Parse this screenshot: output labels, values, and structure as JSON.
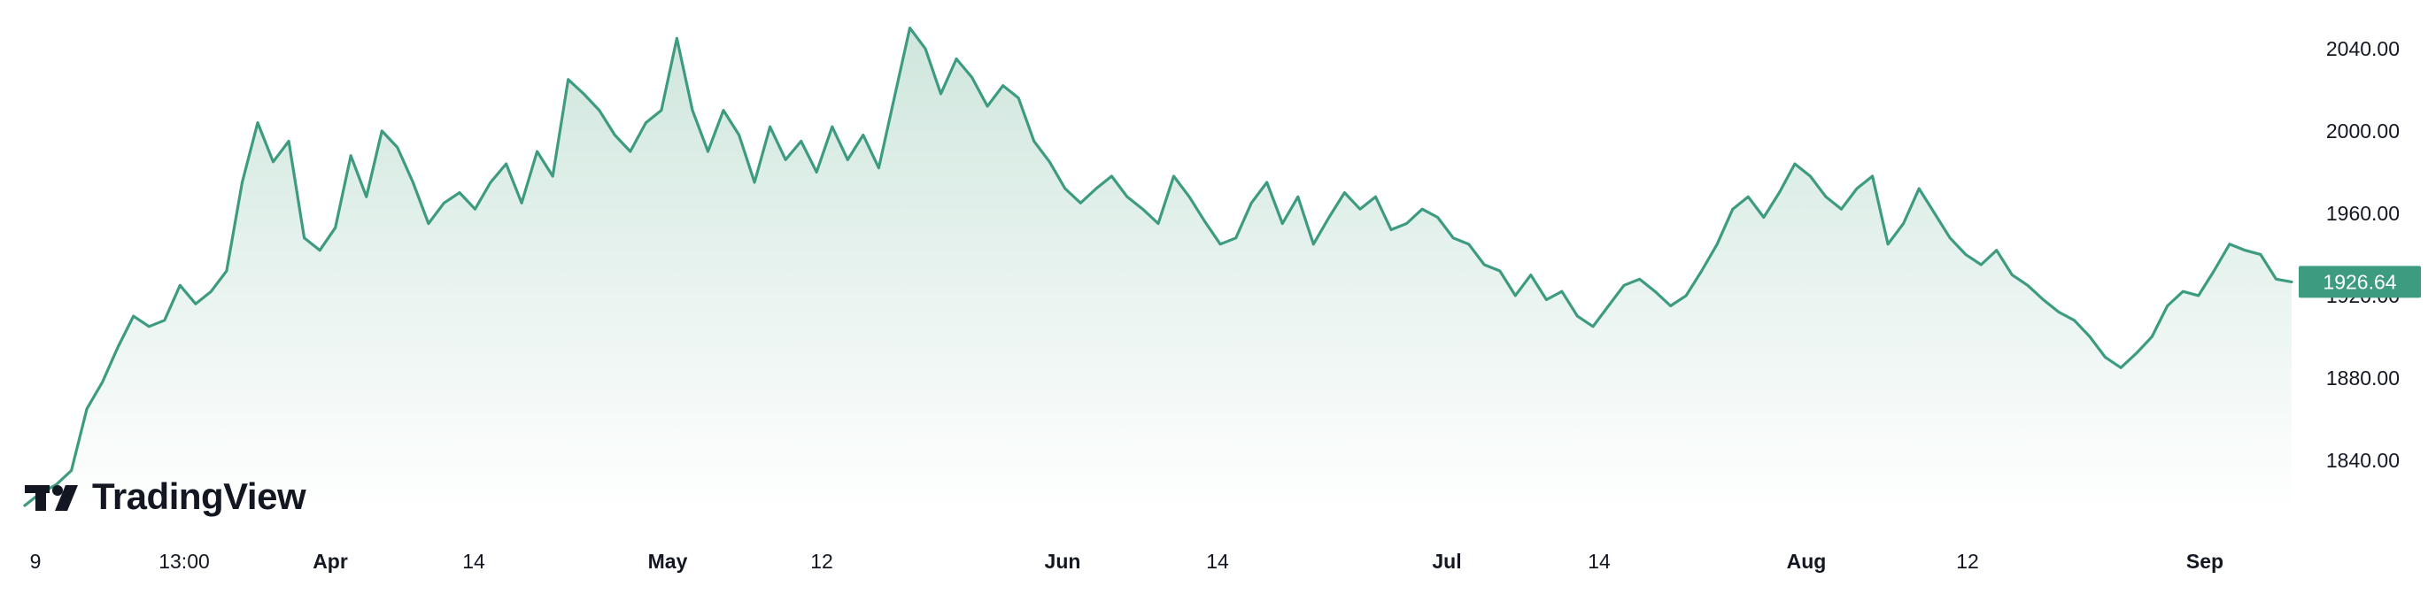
{
  "brand": {
    "name": "TradingView",
    "logo_icon": "tradingview-logo-icon"
  },
  "colors": {
    "line": "#3d9b80",
    "area_top": "#cfe6dd",
    "area_bottom": "#ffffff",
    "price_label_bg": "#3d9b80",
    "text": "#131722"
  },
  "chart_data": {
    "type": "area",
    "title": "",
    "xlabel": "",
    "ylabel": "",
    "ylim": [
      1815,
      2055
    ],
    "y_ticks": [
      "2040.00",
      "2000.00",
      "1960.00",
      "1920.00",
      "1880.00",
      "1840.00"
    ],
    "x_ticks": [
      {
        "label": "9",
        "bold": false
      },
      {
        "label": "13:00",
        "bold": false
      },
      {
        "label": "Apr",
        "bold": true
      },
      {
        "label": "14",
        "bold": false
      },
      {
        "label": "May",
        "bold": true
      },
      {
        "label": "12",
        "bold": false
      },
      {
        "label": "Jun",
        "bold": true
      },
      {
        "label": "14",
        "bold": false
      },
      {
        "label": "Jul",
        "bold": true
      },
      {
        "label": "14",
        "bold": false
      },
      {
        "label": "Aug",
        "bold": true
      },
      {
        "label": "12",
        "bold": false
      },
      {
        "label": "Sep",
        "bold": true
      }
    ],
    "last_price": "1926.64",
    "grid": false,
    "series": [
      {
        "values": [
          1818,
          1824,
          1828,
          1835,
          1865,
          1878,
          1895,
          1910,
          1905,
          1908,
          1925,
          1916,
          1922,
          1932,
          1975,
          2004,
          1985,
          1995,
          1948,
          1942,
          1953,
          1988,
          1968,
          2000,
          1992,
          1975,
          1955,
          1965,
          1970,
          1962,
          1975,
          1984,
          1965,
          1990,
          1978,
          2025,
          2018,
          2010,
          1998,
          1990,
          2004,
          2010,
          2045,
          2010,
          1990,
          2010,
          1998,
          1975,
          2002,
          1986,
          1995,
          1980,
          2002,
          1986,
          1998,
          1982,
          2016,
          2050,
          2040,
          2018,
          2035,
          2026,
          2012,
          2022,
          2016,
          1995,
          1985,
          1972,
          1965,
          1972,
          1978,
          1968,
          1962,
          1955,
          1978,
          1968,
          1956,
          1945,
          1948,
          1965,
          1975,
          1955,
          1968,
          1945,
          1958,
          1970,
          1962,
          1968,
          1952,
          1955,
          1962,
          1958,
          1948,
          1945,
          1935,
          1932,
          1920,
          1930,
          1918,
          1922,
          1910,
          1905,
          1915,
          1925,
          1928,
          1922,
          1915,
          1920,
          1932,
          1945,
          1962,
          1968,
          1958,
          1970,
          1984,
          1978,
          1968,
          1962,
          1972,
          1978,
          1945,
          1955,
          1972,
          1960,
          1948,
          1940,
          1935,
          1942,
          1930,
          1925,
          1918,
          1912,
          1908,
          1900,
          1890,
          1885,
          1892,
          1900,
          1915,
          1922,
          1920,
          1932,
          1945,
          1942,
          1940,
          1928,
          1926.64
        ]
      }
    ]
  }
}
